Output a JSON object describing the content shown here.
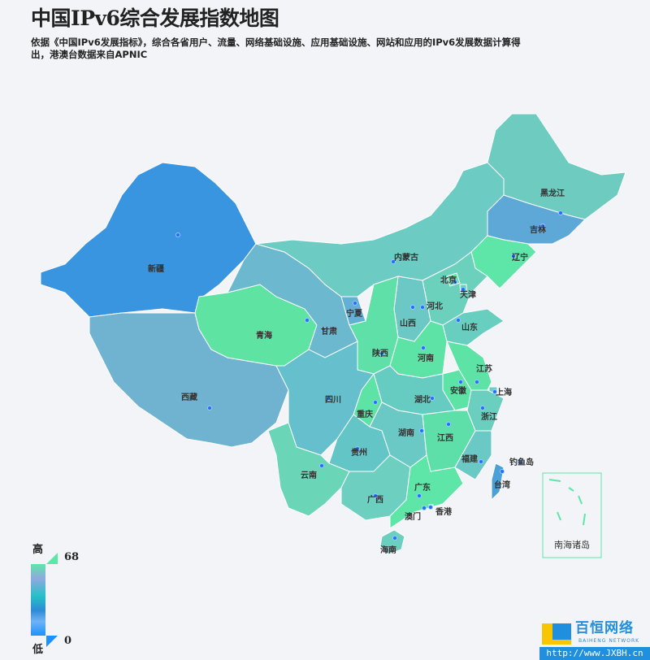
{
  "title": "中国IPv6综合发展指数地图",
  "subtitle": "依据《中国IPv6发展指标》，综合各省用户、流量、网络基础设施、应用基础设施、网站和应用的IPv6发展数据计算得出，港澳台数据来自APNIC",
  "legend": {
    "high_label": "高",
    "low_label": "低",
    "max": "68",
    "min": "0",
    "color_high": "#5ee6a8",
    "color_low": "#1e90ff"
  },
  "south_china_sea_label": "南海诸岛",
  "logo": {
    "cn": "百恒网络",
    "en": "BAIHENG NETWORK",
    "url": "http://www.JXBH.cn"
  },
  "provinces": [
    {
      "name": "新疆",
      "color": "#3a95e0"
    },
    {
      "name": "西藏",
      "color": "#6fb3d0"
    },
    {
      "name": "青海",
      "color": "#5ee3a2"
    },
    {
      "name": "甘肃",
      "color": "#6cb8cf"
    },
    {
      "name": "内蒙古",
      "color": "#6ccbc2"
    },
    {
      "name": "黑龙江",
      "color": "#6dcbc0"
    },
    {
      "name": "吉林",
      "color": "#5ea8d8"
    },
    {
      "name": "辽宁",
      "color": "#5ee6a8"
    },
    {
      "name": "河北",
      "color": "#6bd1bd"
    },
    {
      "name": "北京",
      "color": "#5ee6a8"
    },
    {
      "name": "天津",
      "color": "#6bd1bd"
    },
    {
      "name": "山西",
      "color": "#6cc8c4"
    },
    {
      "name": "山东",
      "color": "#68cfc0"
    },
    {
      "name": "宁夏",
      "color": "#62b0d6"
    },
    {
      "name": "陕西",
      "color": "#5ee0a8"
    },
    {
      "name": "河南",
      "color": "#5ee3a6"
    },
    {
      "name": "江苏",
      "color": "#5ee3a6"
    },
    {
      "name": "安徽",
      "color": "#5ee3a6"
    },
    {
      "name": "上海",
      "color": "#6bcfc0"
    },
    {
      "name": "浙江",
      "color": "#6bcfc0"
    },
    {
      "name": "湖北",
      "color": "#66ccc2"
    },
    {
      "name": "四川",
      "color": "#65bfcc"
    },
    {
      "name": "重庆",
      "color": "#5ee3a6"
    },
    {
      "name": "湖南",
      "color": "#6ac9c4"
    },
    {
      "name": "江西",
      "color": "#5edfa9"
    },
    {
      "name": "福建",
      "color": "#6ac9c4"
    },
    {
      "name": "贵州",
      "color": "#64c5c6"
    },
    {
      "name": "云南",
      "color": "#6ad5b7"
    },
    {
      "name": "广西",
      "color": "#6ccfc0"
    },
    {
      "name": "广东",
      "color": "#5ee6a8"
    },
    {
      "name": "海南",
      "color": "#6bcfc0"
    },
    {
      "name": "台湾",
      "color": "#4aa1d8"
    },
    {
      "name": "香港",
      "color": "#5ee6a8"
    },
    {
      "name": "澳门",
      "color": "#5ee6a8"
    },
    {
      "name": "钓鱼岛",
      "color": "#4aa1d8"
    }
  ]
}
